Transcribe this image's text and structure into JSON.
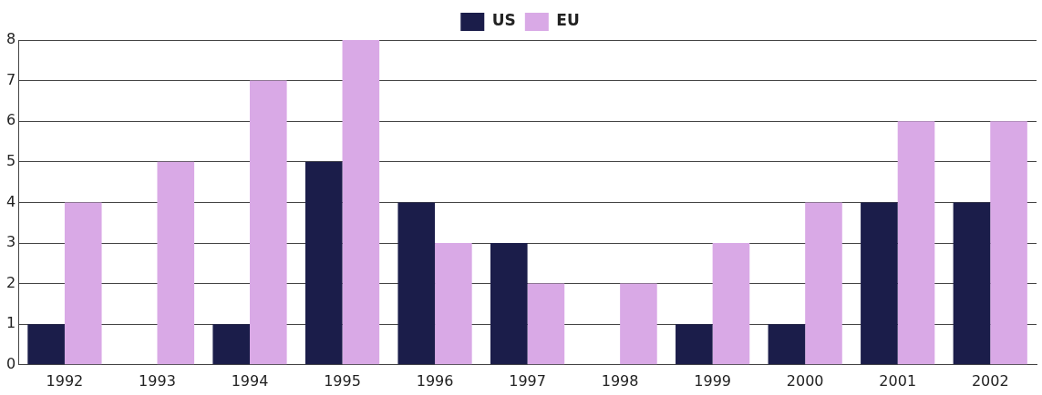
{
  "chart_data": {
    "type": "bar",
    "categories": [
      "1992",
      "1993",
      "1994",
      "1995",
      "1996",
      "1997",
      "1998",
      "1999",
      "2000",
      "2001",
      "2002"
    ],
    "series": [
      {
        "name": "US",
        "color": "#1b1d4a",
        "values": [
          1,
          0,
          1,
          5,
          4,
          3,
          0,
          1,
          1,
          4,
          4
        ]
      },
      {
        "name": "EU",
        "color": "#d9a9e6",
        "values": [
          4,
          5,
          7,
          8,
          3,
          2,
          2,
          3,
          4,
          6,
          6
        ]
      }
    ],
    "ylim": [
      0,
      8
    ],
    "yticks": [
      0,
      1,
      2,
      3,
      4,
      5,
      6,
      7,
      8
    ],
    "grid": "y",
    "legend": "top"
  }
}
